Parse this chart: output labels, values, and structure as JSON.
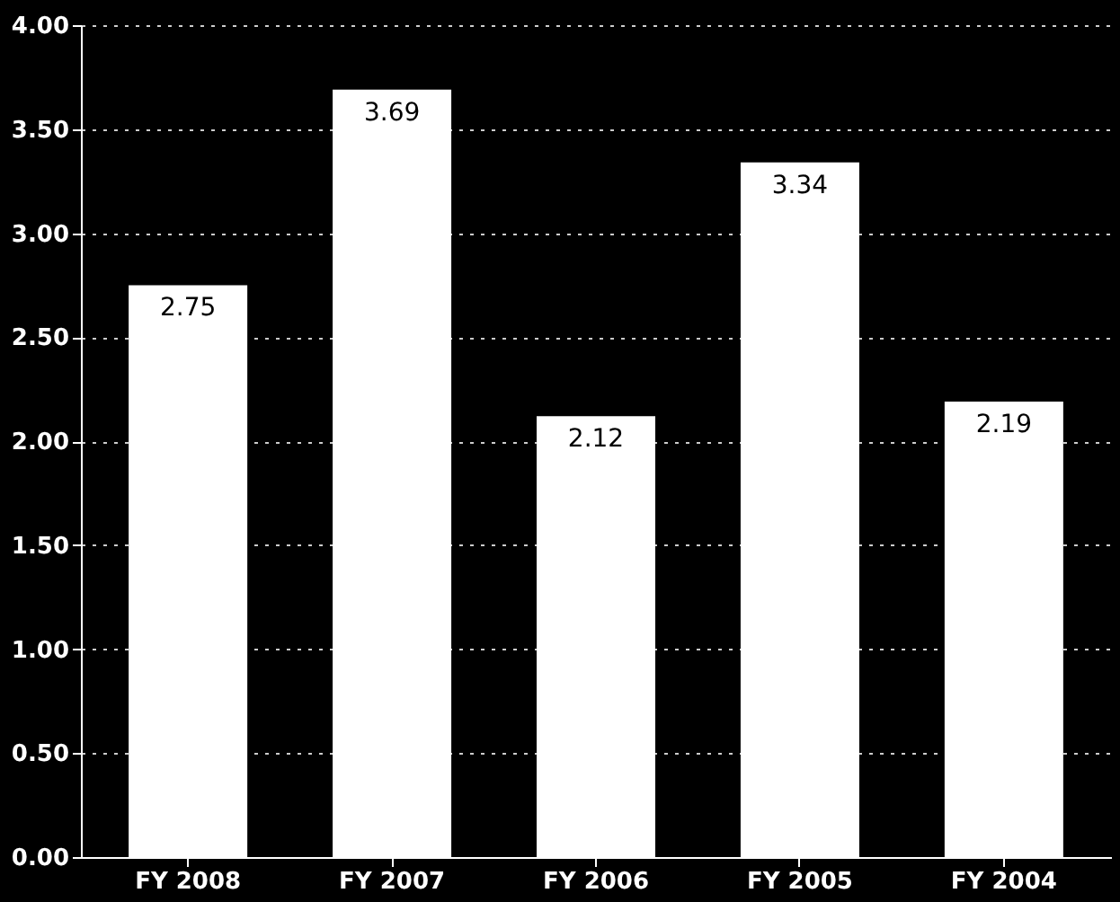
{
  "chart_data": {
    "type": "bar",
    "categories": [
      "FY 2008",
      "FY 2007",
      "FY 2006",
      "FY 2005",
      "FY 2004"
    ],
    "values": [
      2.75,
      3.69,
      2.12,
      3.34,
      2.19
    ],
    "color": "#ffffff",
    "ylim": [
      0,
      4
    ],
    "yticks": [
      {
        "value": 0,
        "label": "0.00"
      },
      {
        "value": 0.5,
        "label": "0.50"
      },
      {
        "value": 1,
        "label": "1.00"
      },
      {
        "value": 1.5,
        "label": "1.50"
      },
      {
        "value": 2,
        "label": "2.00"
      },
      {
        "value": 2.5,
        "label": "2.50"
      },
      {
        "value": 3,
        "label": "3.00"
      },
      {
        "value": 3.5,
        "label": "3.50"
      },
      {
        "value": 4,
        "label": "4.00"
      }
    ],
    "grid": "y",
    "data_labels": true
  }
}
